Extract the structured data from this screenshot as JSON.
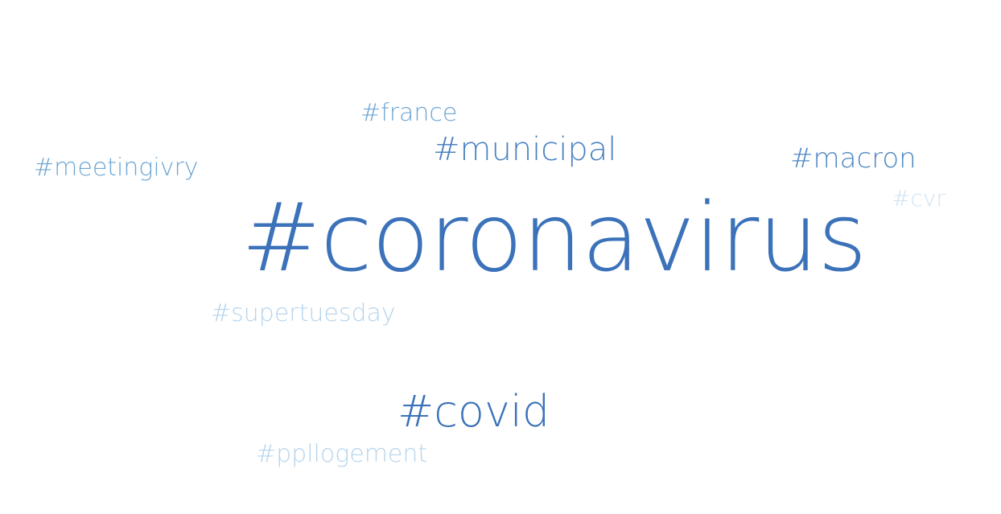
{
  "word_cloud": {
    "words": [
      {
        "id": "coronavirus",
        "text": "#coronavirus",
        "color": "#3b72b9"
      },
      {
        "id": "covid",
        "text": "#covid",
        "color": "#3b72b9"
      },
      {
        "id": "municipal",
        "text": "#municipal",
        "color": "#4a83c1"
      },
      {
        "id": "macron",
        "text": "#macron",
        "color": "#4f88c3"
      },
      {
        "id": "meetingivry",
        "text": "#meetingivry",
        "color": "#6ea5d3"
      },
      {
        "id": "france",
        "text": "#france",
        "color": "#6ea5d3"
      },
      {
        "id": "supertuesday",
        "text": "#supertuesday",
        "color": "#b6d4ec"
      },
      {
        "id": "ppllogement",
        "text": "#ppllogement",
        "color": "#b6d4ec"
      },
      {
        "id": "cvr",
        "text": "#cvr",
        "color": "#cfe2f3"
      }
    ]
  }
}
